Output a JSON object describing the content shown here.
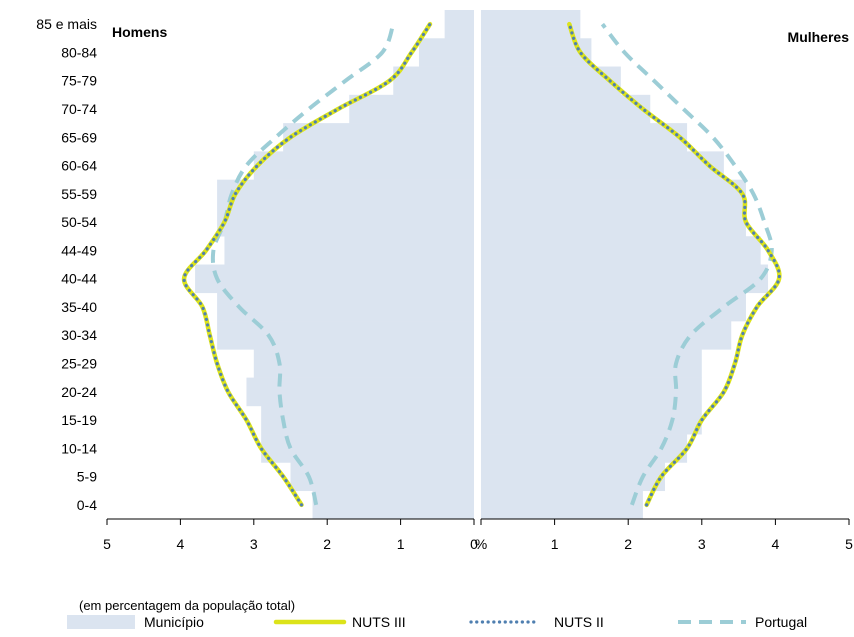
{
  "chart_data": {
    "type": "population-pyramid",
    "panels": {
      "left": "Homens",
      "right": "Mulheres"
    },
    "age_groups": [
      "0-4",
      "5-9",
      "10-14",
      "15-19",
      "20-24",
      "25-29",
      "30-34",
      "35-40",
      "40-44",
      "44-49",
      "50-54",
      "55-59",
      "60-64",
      "65-69",
      "70-74",
      "75-79",
      "80-84",
      "85 e mais"
    ],
    "x_ticks_left": [
      "5",
      "4",
      "3",
      "2",
      "1",
      "0"
    ],
    "x_ticks_right": [
      "%",
      "1",
      "2",
      "3",
      "4",
      "5"
    ],
    "xlim": [
      0,
      5
    ],
    "note": "(em percentagem da população total)",
    "colors": {
      "municipio": "#dbe4f0",
      "nuts3": "#dce31a",
      "nuts2": "#4f7fb0",
      "portugal": "#9ccdd6"
    },
    "series": [
      {
        "name": "Município",
        "style": "bar",
        "homens": [
          2.2,
          2.5,
          2.9,
          2.9,
          3.1,
          3.0,
          3.5,
          3.5,
          3.8,
          3.4,
          3.5,
          3.5,
          3.0,
          2.6,
          1.7,
          1.1,
          0.75,
          0.4
        ],
        "mulheres": [
          2.2,
          2.5,
          2.8,
          3.0,
          3.0,
          3.0,
          3.4,
          3.6,
          3.9,
          3.8,
          3.6,
          3.6,
          3.3,
          2.8,
          2.3,
          1.9,
          1.5,
          1.35
        ]
      },
      {
        "name": "NUTS III",
        "style": "solid",
        "homens": [
          2.35,
          2.6,
          2.9,
          3.1,
          3.35,
          3.5,
          3.6,
          3.7,
          3.95,
          3.65,
          3.4,
          3.25,
          2.95,
          2.5,
          1.85,
          1.15,
          0.85,
          0.6
        ],
        "mulheres": [
          2.25,
          2.45,
          2.8,
          3.0,
          3.3,
          3.45,
          3.55,
          3.75,
          4.05,
          3.9,
          3.6,
          3.55,
          3.1,
          2.7,
          2.2,
          1.75,
          1.35,
          1.2
        ]
      },
      {
        "name": "NUTS II",
        "style": "dotted",
        "homens": [
          2.35,
          2.6,
          2.9,
          3.1,
          3.35,
          3.5,
          3.6,
          3.7,
          3.95,
          3.65,
          3.4,
          3.25,
          2.95,
          2.5,
          1.85,
          1.15,
          0.85,
          0.6
        ],
        "mulheres": [
          2.25,
          2.45,
          2.8,
          3.0,
          3.3,
          3.45,
          3.55,
          3.75,
          4.05,
          3.9,
          3.6,
          3.55,
          3.1,
          2.7,
          2.2,
          1.75,
          1.35,
          1.2
        ]
      },
      {
        "name": "Portugal",
        "style": "dashed",
        "homens": [
          2.15,
          2.25,
          2.5,
          2.6,
          2.65,
          2.65,
          2.8,
          3.2,
          3.5,
          3.55,
          3.4,
          3.3,
          3.1,
          2.7,
          2.25,
          1.75,
          1.25,
          1.1
        ],
        "mulheres": [
          2.05,
          2.2,
          2.45,
          2.6,
          2.65,
          2.65,
          2.85,
          3.3,
          3.8,
          3.95,
          3.85,
          3.7,
          3.45,
          3.15,
          2.75,
          2.35,
          1.95,
          1.65
        ]
      }
    ]
  }
}
